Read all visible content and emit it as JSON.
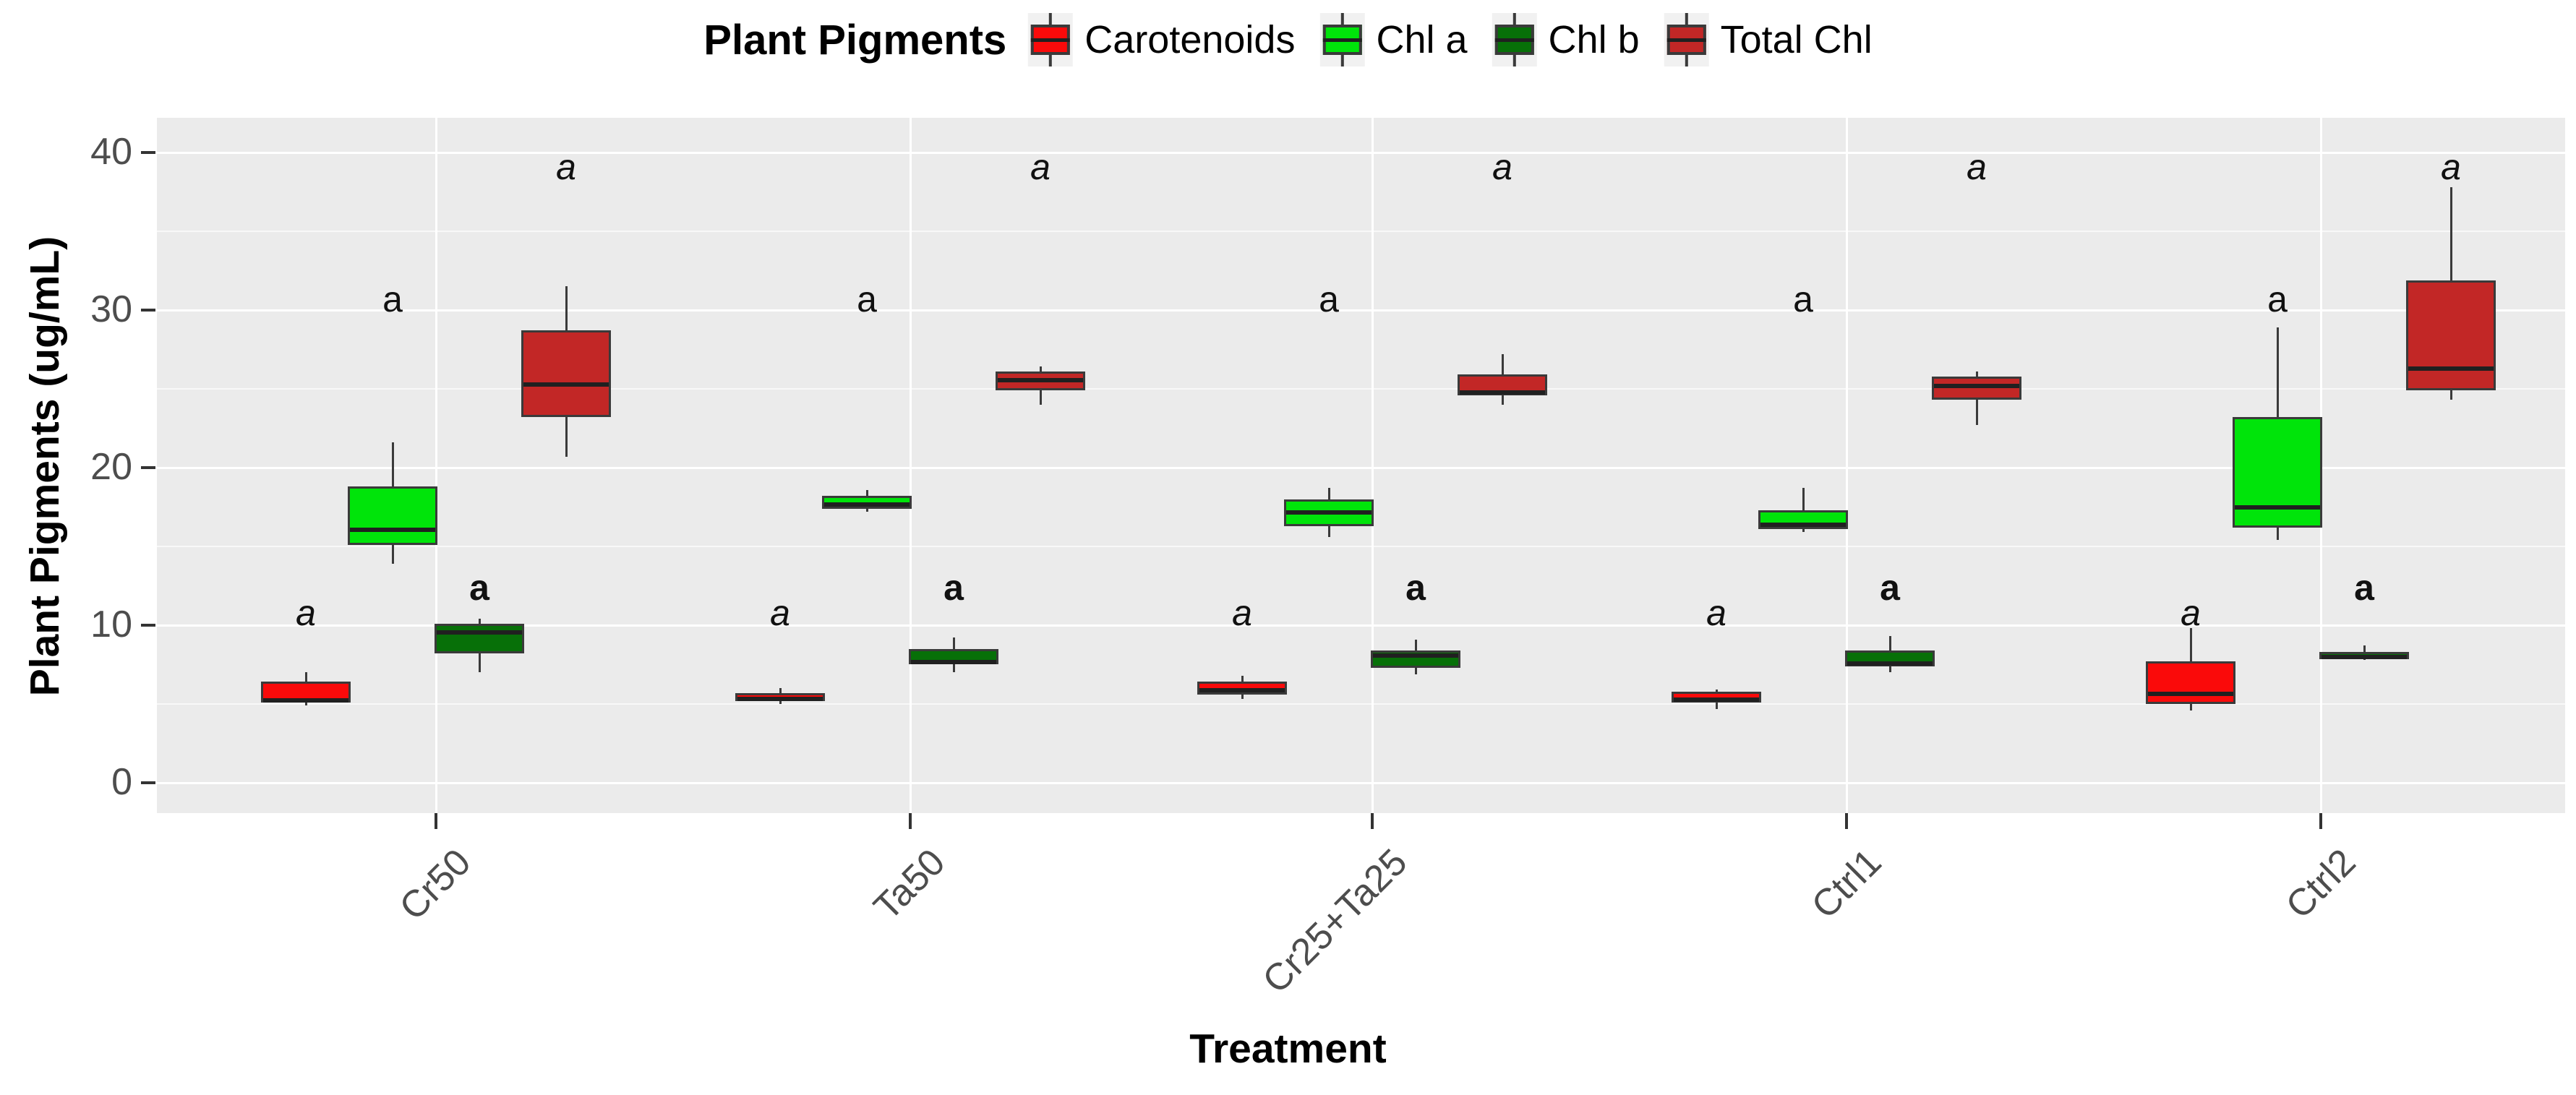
{
  "legend": {
    "title": "Plant Pigments"
  },
  "axes": {
    "y_title": "Plant Pigments (ug/mL)",
    "x_title": "Treatment",
    "y_tick_labels": [
      "0",
      "10",
      "20",
      "30",
      "40"
    ]
  },
  "chart_data": {
    "type": "boxplot",
    "title": "Plant Pigments",
    "xlabel": "Treatment",
    "ylabel": "Plant Pigments (ug/mL)",
    "categories": [
      "Cr50",
      "Ta50",
      "Cr25+Ta25",
      "Ctrl1",
      "Ctrl2"
    ],
    "y_ticks": [
      0,
      10,
      20,
      30,
      40
    ],
    "y_minor_ticks": [
      5,
      15,
      25,
      35
    ],
    "ylim": [
      -1.9,
      42.2
    ],
    "grid": true,
    "legend_position": "top",
    "panel_background": "#ebebeb",
    "gridline_color": "#ffffff",
    "box_border_color": "#3a3a3a",
    "median_color": "#202020",
    "series": [
      {
        "name": "Carotenoids",
        "color": "#fa0a0a",
        "sig_letter": {
          "style": "italic",
          "y": 10.8,
          "values": [
            "a",
            "a",
            "a",
            "a",
            "a"
          ]
        },
        "boxes": [
          {
            "min": 4.9,
            "q1": 5.1,
            "median": 5.3,
            "q3": 6.4,
            "max": 7.0
          },
          {
            "min": 5.0,
            "q1": 5.2,
            "median": 5.4,
            "q3": 5.7,
            "max": 6.0
          },
          {
            "min": 5.3,
            "q1": 5.6,
            "median": 6.0,
            "q3": 6.4,
            "max": 6.8
          },
          {
            "min": 4.7,
            "q1": 5.1,
            "median": 5.4,
            "q3": 5.8,
            "max": 5.9
          },
          {
            "min": 4.6,
            "q1": 5.0,
            "median": 5.8,
            "q3": 7.7,
            "max": 9.8
          }
        ]
      },
      {
        "name": "Chl a",
        "color": "#00e40a",
        "sig_letter": {
          "style": "normal",
          "y": 30.7,
          "values": [
            "a",
            "a",
            "a",
            "a",
            "a"
          ]
        },
        "boxes": [
          {
            "min": 13.9,
            "q1": 15.1,
            "median": 16.2,
            "q3": 18.8,
            "max": 21.6
          },
          {
            "min": 17.2,
            "q1": 17.4,
            "median": 17.8,
            "q3": 18.2,
            "max": 18.6
          },
          {
            "min": 15.6,
            "q1": 16.3,
            "median": 17.3,
            "q3": 18.0,
            "max": 18.7
          },
          {
            "min": 15.9,
            "q1": 16.1,
            "median": 16.5,
            "q3": 17.3,
            "max": 18.7
          },
          {
            "min": 15.4,
            "q1": 16.2,
            "median": 17.6,
            "q3": 23.2,
            "max": 28.9
          }
        ]
      },
      {
        "name": "Chl b",
        "color": "#077008",
        "sig_letter": {
          "style": "bold",
          "y": 12.4,
          "values": [
            "a",
            "a",
            "a",
            "a",
            "a"
          ]
        },
        "boxes": [
          {
            "min": 7.0,
            "q1": 8.2,
            "median": 9.7,
            "q3": 10.1,
            "max": 10.4
          },
          {
            "min": 7.0,
            "q1": 7.5,
            "median": 7.7,
            "q3": 8.5,
            "max": 9.2
          },
          {
            "min": 6.9,
            "q1": 7.3,
            "median": 8.2,
            "q3": 8.4,
            "max": 9.1
          },
          {
            "min": 7.0,
            "q1": 7.4,
            "median": 7.7,
            "q3": 8.4,
            "max": 9.3
          },
          {
            "min": 7.8,
            "q1": 7.9,
            "median": 8.1,
            "q3": 8.3,
            "max": 8.7
          }
        ]
      },
      {
        "name": "Total Chl",
        "color": "#c22726",
        "sig_letter": {
          "style": "italic",
          "y": 39.1,
          "values": [
            "a",
            "a",
            "a",
            "a",
            "a"
          ]
        },
        "boxes": [
          {
            "min": 20.7,
            "q1": 23.2,
            "median": 25.4,
            "q3": 28.7,
            "max": 31.5
          },
          {
            "min": 24.0,
            "q1": 24.9,
            "median": 25.7,
            "q3": 26.1,
            "max": 26.4
          },
          {
            "min": 24.0,
            "q1": 24.6,
            "median": 24.9,
            "q3": 25.9,
            "max": 27.2
          },
          {
            "min": 22.7,
            "q1": 24.3,
            "median": 25.3,
            "q3": 25.8,
            "max": 26.1
          },
          {
            "min": 24.3,
            "q1": 24.9,
            "median": 26.4,
            "q3": 31.9,
            "max": 37.8
          }
        ]
      }
    ]
  }
}
